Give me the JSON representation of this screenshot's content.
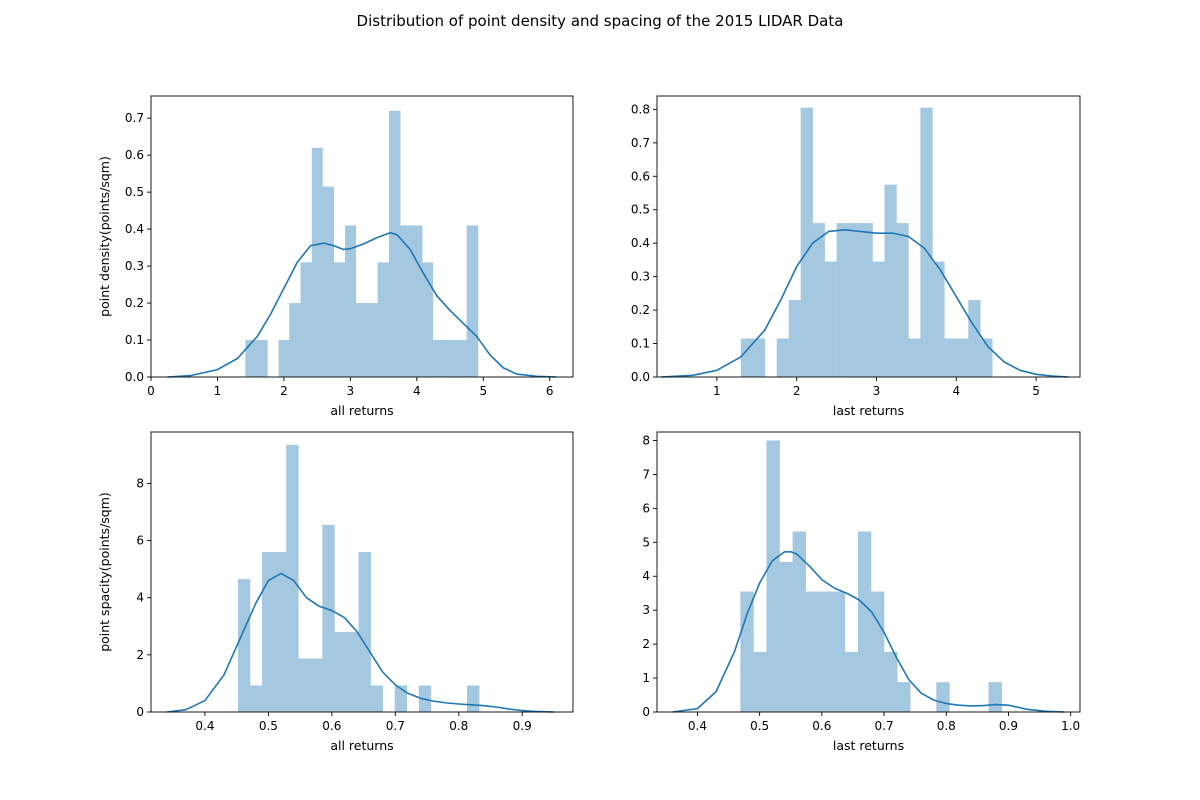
{
  "figure": {
    "title": "Distribution of point density and spacing of the 2015 LIDAR Data"
  },
  "colors": {
    "bar": "#a5c8e1",
    "kde": "#1f77b4"
  },
  "chart_data": [
    {
      "type": "bar",
      "subtype": "histogram-with-kde",
      "xlabel": "all returns",
      "ylabel": "point density(points/sqm)",
      "xlim": [
        0,
        6.35
      ],
      "ylim": [
        0,
        0.76
      ],
      "xticks": [
        0,
        1,
        2,
        3,
        4,
        5,
        6
      ],
      "yticks": [
        0.0,
        0.1,
        0.2,
        0.3,
        0.4,
        0.5,
        0.6,
        0.7
      ],
      "tick_decimals": 1,
      "x_tick_decimals": 0,
      "bin_edges": [
        1.42,
        1.59,
        1.75,
        1.92,
        2.08,
        2.25,
        2.42,
        2.58,
        2.75,
        2.92,
        3.08,
        3.25,
        3.41,
        3.58,
        3.75,
        3.91,
        4.08,
        4.24,
        4.41,
        4.58,
        4.75,
        4.92
      ],
      "bar_heights": [
        0.1,
        0.1,
        0,
        0.1,
        0.2,
        0.31,
        0.62,
        0.515,
        0.31,
        0.41,
        0.2,
        0.2,
        0.31,
        0.72,
        0.41,
        0.41,
        0.31,
        0.1,
        0.1,
        0.1,
        0.41
      ],
      "kde": {
        "x": [
          0.25,
          0.6,
          1.0,
          1.3,
          1.6,
          1.8,
          2.0,
          2.2,
          2.4,
          2.6,
          2.75,
          2.9,
          3.0,
          3.2,
          3.4,
          3.6,
          3.7,
          3.9,
          4.1,
          4.3,
          4.5,
          4.7,
          4.9,
          5.1,
          5.3,
          5.5,
          5.8,
          6.1
        ],
        "y": [
          0.0,
          0.004,
          0.02,
          0.05,
          0.11,
          0.17,
          0.24,
          0.31,
          0.355,
          0.362,
          0.355,
          0.345,
          0.347,
          0.36,
          0.377,
          0.39,
          0.385,
          0.345,
          0.28,
          0.22,
          0.18,
          0.145,
          0.11,
          0.06,
          0.025,
          0.008,
          0.002,
          0.0
        ]
      }
    },
    {
      "type": "bar",
      "subtype": "histogram-with-kde",
      "xlabel": "last returns",
      "ylabel": "",
      "xlim": [
        0.25,
        5.55
      ],
      "ylim": [
        0,
        0.84
      ],
      "xticks": [
        1,
        2,
        3,
        4,
        5
      ],
      "yticks": [
        0.0,
        0.1,
        0.2,
        0.3,
        0.4,
        0.5,
        0.6,
        0.7,
        0.8
      ],
      "tick_decimals": 1,
      "x_tick_decimals": 0,
      "bin_edges": [
        1.3,
        1.45,
        1.6,
        1.75,
        1.9,
        2.05,
        2.2,
        2.35,
        2.5,
        2.65,
        2.8,
        2.95,
        3.1,
        3.25,
        3.4,
        3.55,
        3.7,
        3.85,
        4.0,
        4.15,
        4.3,
        4.45
      ],
      "bar_heights": [
        0.115,
        0.115,
        0,
        0.115,
        0.23,
        0.805,
        0.46,
        0.345,
        0.46,
        0.46,
        0.46,
        0.345,
        0.575,
        0.46,
        0.115,
        0.805,
        0.345,
        0.115,
        0.115,
        0.23,
        0.115
      ],
      "kde": {
        "x": [
          0.3,
          0.7,
          1.0,
          1.3,
          1.6,
          1.8,
          2.0,
          2.2,
          2.4,
          2.6,
          2.8,
          3.0,
          3.2,
          3.4,
          3.6,
          3.8,
          4.0,
          4.2,
          4.4,
          4.6,
          4.8,
          5.0,
          5.2,
          5.4
        ],
        "y": [
          0.0,
          0.005,
          0.02,
          0.06,
          0.14,
          0.23,
          0.33,
          0.4,
          0.435,
          0.44,
          0.435,
          0.43,
          0.43,
          0.42,
          0.385,
          0.32,
          0.24,
          0.16,
          0.09,
          0.045,
          0.02,
          0.008,
          0.003,
          0.0
        ]
      }
    },
    {
      "type": "bar",
      "subtype": "histogram-with-kde",
      "xlabel": "all returns",
      "ylabel": "point spacity(points/sqm)",
      "xlim": [
        0.315,
        0.98
      ],
      "ylim": [
        0,
        9.8
      ],
      "xticks": [
        0.4,
        0.5,
        0.6,
        0.7,
        0.8,
        0.9
      ],
      "yticks": [
        0,
        2,
        4,
        6,
        8
      ],
      "tick_decimals": 0,
      "x_tick_decimals": 1,
      "bin_edges": [
        0.452,
        0.471,
        0.49,
        0.509,
        0.528,
        0.547,
        0.566,
        0.585,
        0.604,
        0.623,
        0.642,
        0.661,
        0.68,
        0.699,
        0.718,
        0.737,
        0.756,
        0.775,
        0.794,
        0.813,
        0.832,
        0.851
      ],
      "bar_heights": [
        4.65,
        0.93,
        5.6,
        5.6,
        9.35,
        1.87,
        1.87,
        6.55,
        2.8,
        2.8,
        5.6,
        0.93,
        0,
        0.93,
        0,
        0.93,
        0,
        0,
        0,
        0.93,
        0
      ],
      "kde": {
        "x": [
          0.34,
          0.37,
          0.4,
          0.43,
          0.46,
          0.48,
          0.5,
          0.52,
          0.54,
          0.56,
          0.58,
          0.6,
          0.62,
          0.64,
          0.66,
          0.68,
          0.7,
          0.72,
          0.74,
          0.76,
          0.78,
          0.8,
          0.82,
          0.84,
          0.86,
          0.88,
          0.9,
          0.92,
          0.95
        ],
        "y": [
          0.0,
          0.08,
          0.4,
          1.3,
          2.8,
          3.8,
          4.6,
          4.85,
          4.6,
          4.0,
          3.7,
          3.55,
          3.3,
          2.8,
          2.1,
          1.4,
          0.95,
          0.65,
          0.48,
          0.38,
          0.32,
          0.28,
          0.25,
          0.22,
          0.17,
          0.1,
          0.05,
          0.02,
          0.0
        ]
      }
    },
    {
      "type": "bar",
      "subtype": "histogram-with-kde",
      "xlabel": "last returns",
      "ylabel": "",
      "xlim": [
        0.335,
        1.015
      ],
      "ylim": [
        0,
        8.25
      ],
      "xticks": [
        0.4,
        0.5,
        0.6,
        0.7,
        0.8,
        0.9,
        1.0
      ],
      "yticks": [
        0,
        1,
        2,
        3,
        4,
        5,
        6,
        7,
        8
      ],
      "tick_decimals": 0,
      "x_tick_decimals": 1,
      "bin_edges": [
        0.469,
        0.49,
        0.511,
        0.532,
        0.553,
        0.574,
        0.595,
        0.616,
        0.637,
        0.658,
        0.679,
        0.7,
        0.721,
        0.742,
        0.763,
        0.784,
        0.805,
        0.826,
        0.847,
        0.868,
        0.889
      ],
      "bar_heights": [
        3.55,
        1.77,
        8.0,
        4.42,
        5.32,
        3.55,
        3.55,
        3.55,
        1.77,
        5.32,
        3.55,
        1.77,
        0.88,
        0,
        0,
        0.88,
        0,
        0,
        0,
        0.88
      ],
      "kde": {
        "x": [
          0.36,
          0.4,
          0.43,
          0.46,
          0.48,
          0.5,
          0.52,
          0.54,
          0.55,
          0.56,
          0.58,
          0.6,
          0.62,
          0.64,
          0.66,
          0.68,
          0.7,
          0.72,
          0.74,
          0.76,
          0.78,
          0.8,
          0.82,
          0.84,
          0.86,
          0.88,
          0.9,
          0.93,
          0.96,
          0.99
        ],
        "y": [
          0.0,
          0.1,
          0.6,
          1.8,
          2.9,
          3.8,
          4.45,
          4.72,
          4.72,
          4.65,
          4.3,
          3.9,
          3.65,
          3.5,
          3.3,
          2.95,
          2.35,
          1.6,
          0.95,
          0.55,
          0.35,
          0.25,
          0.2,
          0.18,
          0.19,
          0.22,
          0.2,
          0.08,
          0.02,
          0.0
        ]
      }
    }
  ]
}
